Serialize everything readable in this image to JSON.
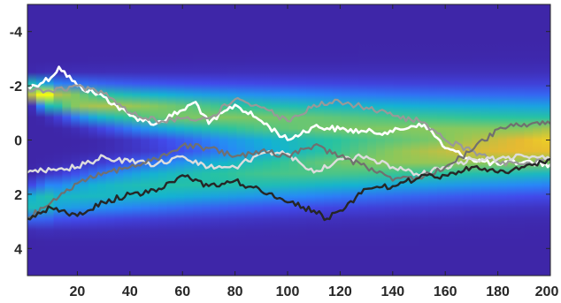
{
  "chart_data": {
    "type": "heatmap+line",
    "title": "",
    "xlabel": "",
    "ylabel": "",
    "xlim": [
      1,
      200
    ],
    "ylim": [
      -5,
      5
    ],
    "y_reversed": true,
    "grid": false,
    "x_ticks": [
      20,
      40,
      60,
      80,
      100,
      120,
      140,
      160,
      180,
      200
    ],
    "x_tick_labels": [
      "20",
      "40",
      "60",
      "80",
      "100",
      "120",
      "140",
      "160",
      "180",
      "200"
    ],
    "y_ticks": [
      -4,
      -2,
      0,
      2,
      4
    ],
    "y_tick_labels": [
      "-4",
      "-2",
      "0",
      "2",
      "4"
    ],
    "colormap": "parula",
    "heatmap_density": {
      "mode1": {
        "center_start": -1.95,
        "center_end": -0.1,
        "width_start": 0.15,
        "width_end": 1.0
      },
      "mode2": {
        "center_start": 2.4,
        "center_end": 0.15,
        "width_start": 0.35,
        "width_end": 1.0
      }
    },
    "series": [
      {
        "color": "#ffffff",
        "width": 2.6,
        "x": [
          1,
          10,
          13,
          20,
          30,
          40,
          50,
          60,
          65,
          70,
          80,
          90,
          100,
          110,
          120,
          130,
          140,
          150,
          155,
          160,
          170,
          180,
          190,
          200
        ],
        "y": [
          -1.9,
          -2.3,
          -2.7,
          -2.0,
          -1.6,
          -0.9,
          -0.6,
          -1.1,
          -1.4,
          -0.6,
          -1.3,
          -0.7,
          0.0,
          -0.5,
          -0.4,
          -0.3,
          -0.3,
          -0.6,
          -0.3,
          0.3,
          0.7,
          0.9,
          0.8,
          0.9
        ]
      },
      {
        "color": "#999999",
        "width": 2.2,
        "x": [
          1,
          10,
          20,
          30,
          40,
          50,
          60,
          70,
          80,
          90,
          100,
          110,
          120,
          130,
          140,
          150,
          160,
          170,
          180,
          190,
          200
        ],
        "y": [
          -1.9,
          -1.8,
          -2.0,
          -1.7,
          -1.0,
          -0.7,
          -0.8,
          -0.8,
          -1.5,
          -1.2,
          -0.7,
          -1.3,
          -1.4,
          -1.2,
          -0.9,
          -0.7,
          0.0,
          0.4,
          0.8,
          0.9,
          0.7
        ]
      },
      {
        "color": "#dddddd",
        "width": 2.4,
        "x": [
          1,
          10,
          20,
          30,
          40,
          50,
          60,
          70,
          80,
          90,
          100,
          110,
          120,
          130,
          140,
          150,
          160,
          170,
          180,
          190,
          200
        ],
        "y": [
          1.2,
          1.1,
          1.0,
          0.6,
          0.8,
          0.9,
          0.6,
          1.0,
          1.0,
          0.5,
          0.5,
          1.2,
          0.7,
          0.6,
          1.0,
          1.3,
          1.0,
          0.7,
          0.7,
          0.6,
          0.7
        ]
      },
      {
        "color": "#707070",
        "width": 2.2,
        "x": [
          1,
          10,
          20,
          30,
          40,
          50,
          60,
          70,
          80,
          90,
          100,
          110,
          120,
          130,
          140,
          150,
          160,
          170,
          180,
          190,
          200
        ],
        "y": [
          2.9,
          2.3,
          1.6,
          1.2,
          1.0,
          0.7,
          0.2,
          0.3,
          0.6,
          0.4,
          0.6,
          0.2,
          0.6,
          1.0,
          1.5,
          1.4,
          1.0,
          0.4,
          -0.4,
          -0.6,
          -0.6
        ]
      },
      {
        "color": "#262626",
        "width": 2.4,
        "x": [
          1,
          10,
          20,
          30,
          40,
          50,
          60,
          70,
          80,
          90,
          100,
          110,
          115,
          120,
          130,
          140,
          150,
          160,
          170,
          180,
          190,
          200
        ],
        "y": [
          2.9,
          2.5,
          2.8,
          2.3,
          2.0,
          1.9,
          1.3,
          1.7,
          1.5,
          1.9,
          2.3,
          2.6,
          2.9,
          2.6,
          1.8,
          1.7,
          1.4,
          1.3,
          1.0,
          1.2,
          1.0,
          0.7
        ]
      }
    ]
  }
}
